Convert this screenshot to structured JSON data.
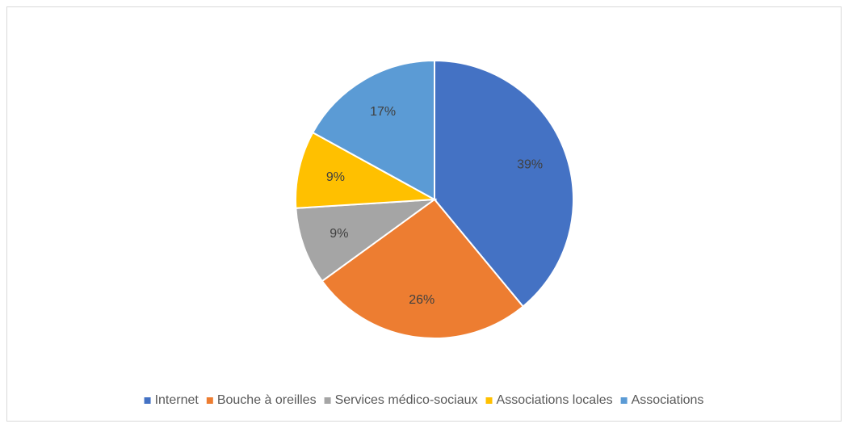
{
  "chart_data": {
    "type": "pie",
    "categories": [
      "Internet",
      "Bouche à oreilles",
      "Services médico-sociaux",
      "Associations locales",
      "Associations"
    ],
    "values": [
      39,
      26,
      9,
      9,
      17
    ],
    "value_labels": [
      "39%",
      "26%",
      "9%",
      "9%",
      "17%"
    ],
    "colors": [
      "#4472c4",
      "#ed7d31",
      "#a5a5a5",
      "#ffc000",
      "#5b9bd5"
    ],
    "legend": "bottom"
  }
}
